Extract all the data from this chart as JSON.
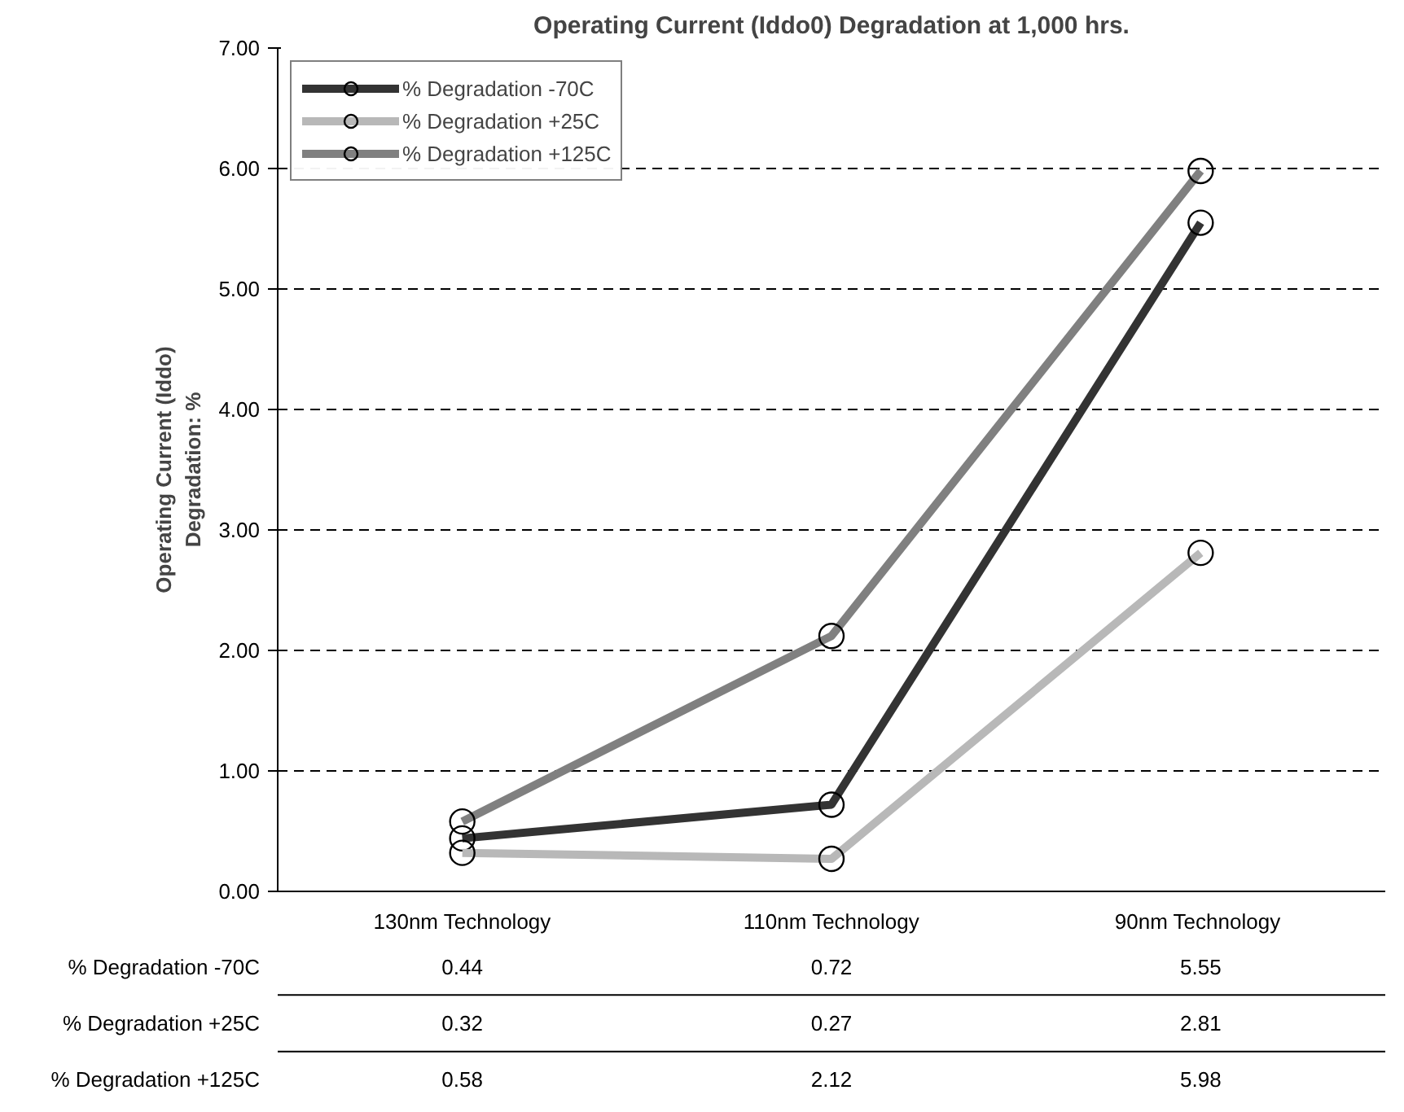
{
  "chart_data": {
    "type": "line",
    "title": "Operating Current (Iddo0) Degradation at 1,000 hrs.",
    "ylabel": "Operating Current (Iddo)\nDegradation: %",
    "categories": [
      "130nm Technology",
      "110nm Technology",
      "90nm  Technology"
    ],
    "series": [
      {
        "name": "% Degradation -70C",
        "color": "#333333",
        "values": [
          0.44,
          0.72,
          5.55
        ]
      },
      {
        "name": "% Degradation +25C",
        "color": "#b8b8b8",
        "values": [
          0.32,
          0.27,
          2.81
        ]
      },
      {
        "name": "% Degradation +125C",
        "color": "#808080",
        "values": [
          0.58,
          2.12,
          5.98
        ]
      }
    ],
    "ylim": [
      0,
      7
    ],
    "yticks": [
      {
        "value": 0,
        "label": "0.00"
      },
      {
        "value": 1,
        "label": "1.00"
      },
      {
        "value": 2,
        "label": "2.00"
      },
      {
        "value": 3,
        "label": "3.00"
      },
      {
        "value": 4,
        "label": "4.00"
      },
      {
        "value": 5,
        "label": "5.00"
      },
      {
        "value": 6,
        "label": "6.00"
      },
      {
        "value": 7,
        "label": "7.00"
      }
    ],
    "grid": "y",
    "legend": "top left",
    "marker": "circle",
    "line_style": "solid",
    "data_labels": true
  }
}
